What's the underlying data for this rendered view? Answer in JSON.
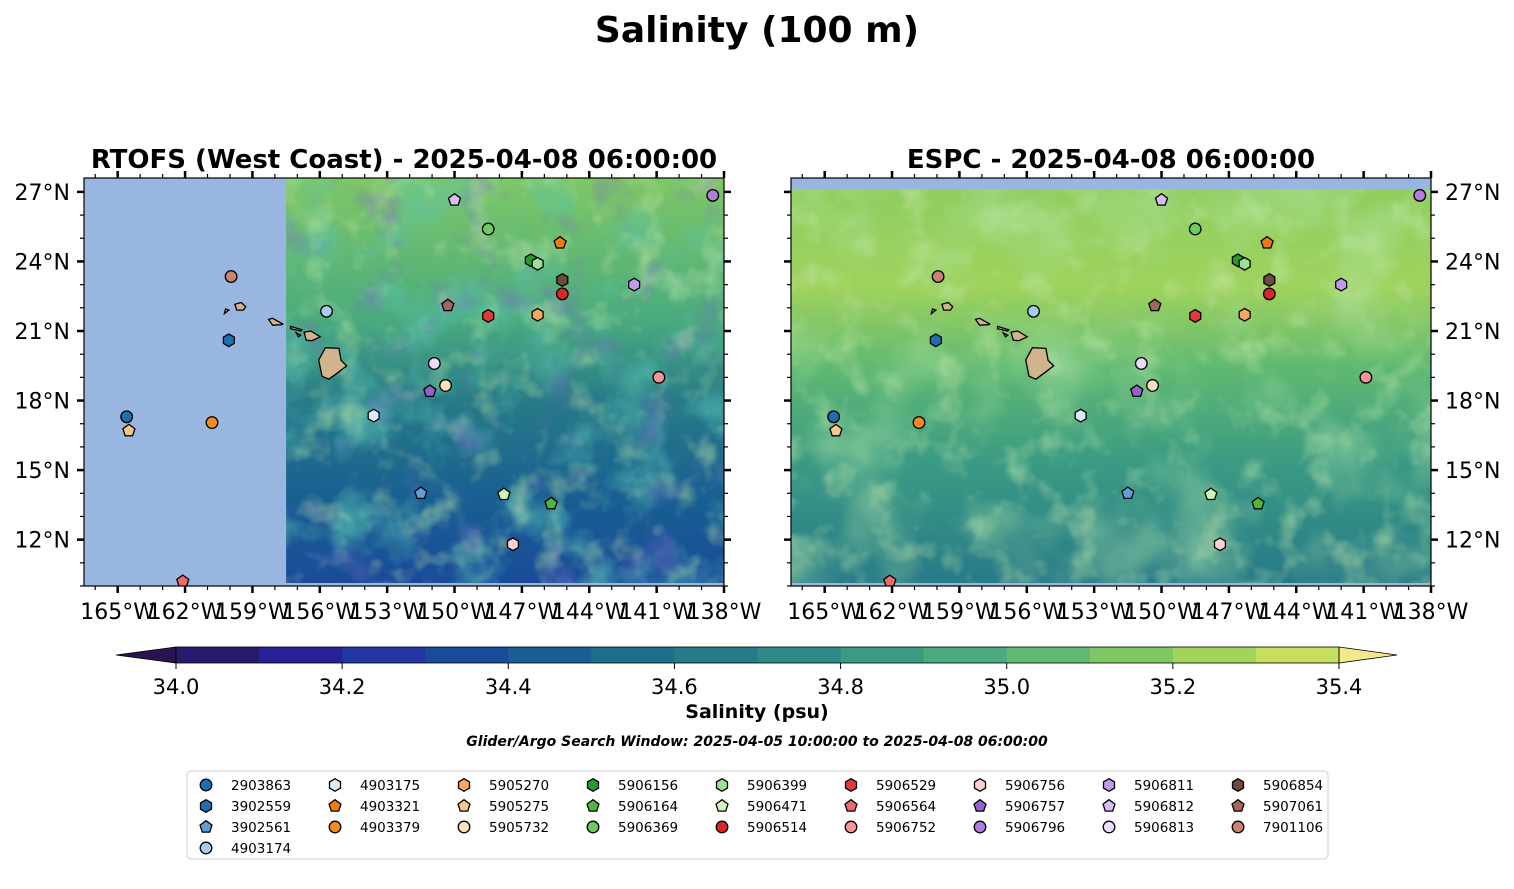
{
  "figure": {
    "title": "Salinity (100 m)",
    "search_window": "Glider/Argo Search Window: 2025-04-05 10:00:00 to 2025-04-08 06:00:00"
  },
  "colorbar": {
    "label": "Salinity (psu)",
    "min": 34.0,
    "max": 35.4,
    "step": 0.1,
    "extend": "both",
    "ticks": [
      "34.0",
      "34.2",
      "34.4",
      "34.6",
      "34.8",
      "35.0",
      "35.2",
      "35.4"
    ],
    "colors": [
      "#2a1a6e",
      "#28229a",
      "#2236a3",
      "#1a4b9a",
      "#185e92",
      "#1d6d8d",
      "#277a88",
      "#2e8a86",
      "#3a9a84",
      "#4aab7e",
      "#60b972",
      "#7fc765",
      "#a2d45a",
      "#c6df5e",
      "#f1e88c"
    ],
    "extend_low_color": "#2a1450",
    "extend_high_color": "#f5e88a"
  },
  "chart_data": [
    {
      "type": "scatter",
      "title": "RTOFS (West Coast) - 2025-04-08 06:00:00",
      "xlim": [
        -166.5,
        -138
      ],
      "ylim": [
        10,
        27.6
      ],
      "xticks": [
        "165°W",
        "162°W",
        "159°W",
        "156°W",
        "153°W",
        "150°W",
        "147°W",
        "144°W",
        "141°W",
        "138°W"
      ],
      "yticks": [
        "27°N",
        "24°N",
        "21°N",
        "18°N",
        "15°N",
        "12°N"
      ],
      "no_data_color": "#98b6e0",
      "data_lon_min": -157.5,
      "data_lat_max": 27.6
    },
    {
      "type": "scatter",
      "title": "ESPC - 2025-04-08 06:00:00",
      "xlim": [
        -166.5,
        -138
      ],
      "ylim": [
        10,
        27.6
      ],
      "xticks": [
        "165°W",
        "162°W",
        "159°W",
        "156°W",
        "153°W",
        "150°W",
        "147°W",
        "144°W",
        "141°W",
        "138°W"
      ],
      "yticks": [
        "27°N",
        "24°N",
        "21°N",
        "18°N",
        "15°N",
        "12°N"
      ],
      "no_data_color": "#98b6e0",
      "data_lon_min": -166.5,
      "data_lat_max": 27.1
    }
  ],
  "floats": [
    {
      "id": "2903863",
      "marker": "circle",
      "color": "#1f6eb4",
      "lon": -164.6,
      "lat": 17.3
    },
    {
      "id": "3902559",
      "marker": "hexagon",
      "color": "#1f6eb4",
      "lon": -160.05,
      "lat": 20.6
    },
    {
      "id": "3902561",
      "marker": "pentagon",
      "color": "#5f9fd8",
      "lon": -151.5,
      "lat": 14.0
    },
    {
      "id": "4903174",
      "marker": "circle",
      "color": "#a6cdef",
      "lon": -155.7,
      "lat": 21.85
    },
    {
      "id": "4903175",
      "marker": "hexagon",
      "color": "#d7ebfa",
      "lon": -153.6,
      "lat": 17.35
    },
    {
      "id": "4903321",
      "marker": "pentagon",
      "color": "#f07b12",
      "lon": -145.3,
      "lat": 24.8
    },
    {
      "id": "4903379",
      "marker": "circle",
      "color": "#f58a25",
      "lon": -160.8,
      "lat": 17.05
    },
    {
      "id": "5905270",
      "marker": "hexagon",
      "color": "#f7a75e",
      "lon": -146.3,
      "lat": 21.7
    },
    {
      "id": "5905275",
      "marker": "pentagon",
      "color": "#f8c68a",
      "lon": -164.5,
      "lat": 16.7
    },
    {
      "id": "5905732",
      "marker": "circle",
      "color": "#fde1bc",
      "lon": -150.4,
      "lat": 18.65
    },
    {
      "id": "5906156",
      "marker": "hexagon",
      "color": "#2a9a2a",
      "lon": -146.6,
      "lat": 24.05
    },
    {
      "id": "5906164",
      "marker": "pentagon",
      "color": "#4fb640",
      "lon": -145.7,
      "lat": 13.55
    },
    {
      "id": "5906369",
      "marker": "circle",
      "color": "#6ccc62",
      "lon": -148.5,
      "lat": 25.4
    },
    {
      "id": "5906399",
      "marker": "hexagon",
      "color": "#9ddf95",
      "lon": -146.3,
      "lat": 23.9
    },
    {
      "id": "5906471",
      "marker": "pentagon",
      "color": "#cdf6b8",
      "lon": -147.8,
      "lat": 13.95
    },
    {
      "id": "5906514",
      "marker": "circle",
      "color": "#d92626",
      "lon": -145.2,
      "lat": 22.6
    },
    {
      "id": "5906529",
      "marker": "hexagon",
      "color": "#e23a3a",
      "lon": -148.5,
      "lat": 21.65
    },
    {
      "id": "5906564",
      "marker": "pentagon",
      "color": "#ec6a6a",
      "lon": -162.1,
      "lat": 10.2
    },
    {
      "id": "5906752",
      "marker": "circle",
      "color": "#f69595",
      "lon": -140.9,
      "lat": 19.0
    },
    {
      "id": "5906756",
      "marker": "hexagon",
      "color": "#fdd0d0",
      "lon": -147.4,
      "lat": 11.8
    },
    {
      "id": "5906757",
      "marker": "pentagon",
      "color": "#9364c8",
      "lon": -151.1,
      "lat": 18.4
    },
    {
      "id": "5906796",
      "marker": "circle",
      "color": "#b07cdd",
      "lon": -138.5,
      "lat": 26.85
    },
    {
      "id": "5906811",
      "marker": "hexagon",
      "color": "#c29ae8",
      "lon": -142.0,
      "lat": 23.0
    },
    {
      "id": "5906812",
      "marker": "pentagon",
      "color": "#d8bdf3",
      "lon": -150.0,
      "lat": 26.65
    },
    {
      "id": "5906813",
      "marker": "circle",
      "color": "#ecdcfb",
      "lon": -150.9,
      "lat": 19.6
    },
    {
      "id": "5906854",
      "marker": "hexagon",
      "color": "#6e4a3c",
      "lon": -145.2,
      "lat": 23.2
    },
    {
      "id": "5907061",
      "marker": "pentagon",
      "color": "#a2665a",
      "lon": -150.3,
      "lat": 22.1
    },
    {
      "id": "7901106",
      "marker": "circle",
      "color": "#c98370",
      "lon": -159.95,
      "lat": 23.35
    }
  ]
}
